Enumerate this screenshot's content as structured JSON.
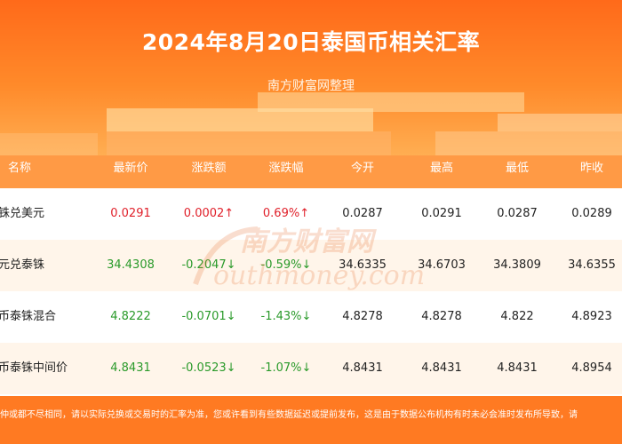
{
  "header": {
    "title": "2024年8月20日泰国币相关汇率",
    "subtitle": "南方财富网整理"
  },
  "columns": [
    "名称",
    "最新价",
    "涨跌额",
    "涨跌幅",
    "今开",
    "最高",
    "最低",
    "昨收"
  ],
  "rows": [
    {
      "name": "铢兑美元",
      "latest": "0.0291",
      "change": "0.0002↑",
      "pct": "0.69%↑",
      "open": "0.0287",
      "high": "0.0291",
      "low": "0.0287",
      "prev": "0.0289"
    },
    {
      "name": "元兑泰铢",
      "latest": "34.4308",
      "change": "-0.2047↓",
      "pct": "-0.59%↓",
      "open": "34.6335",
      "high": "34.6703",
      "low": "34.3809",
      "prev": "34.6355"
    },
    {
      "name": "币泰铢混合",
      "latest": "4.8222",
      "change": "-0.0701↓",
      "pct": "-1.43%↓",
      "open": "4.8278",
      "high": "4.8278",
      "low": "4.822",
      "prev": "4.8923"
    },
    {
      "name": "币泰铢中间价",
      "latest": "4.8431",
      "change": "-0.0523↓",
      "pct": "-1.07%↓",
      "open": "4.8431",
      "high": "4.8431",
      "low": "4.8431",
      "prev": "4.8954"
    }
  ],
  "watermark": {
    "cn": "南方财富网",
    "en": "outhmoney.com"
  },
  "footer": {
    "text": "仲或都不尽相同，请以实际兑换或交易时的汇率为准，您或许看到有些数据延迟或提前发布，这是由于数据公布机构有时未必会准时发布所导致，请"
  },
  "colors": {
    "banner": "#ff6a1a",
    "header_row": "#ff9a45",
    "up": "#e0202a",
    "down": "#2a9a2a",
    "footer": "#ff7a22"
  }
}
